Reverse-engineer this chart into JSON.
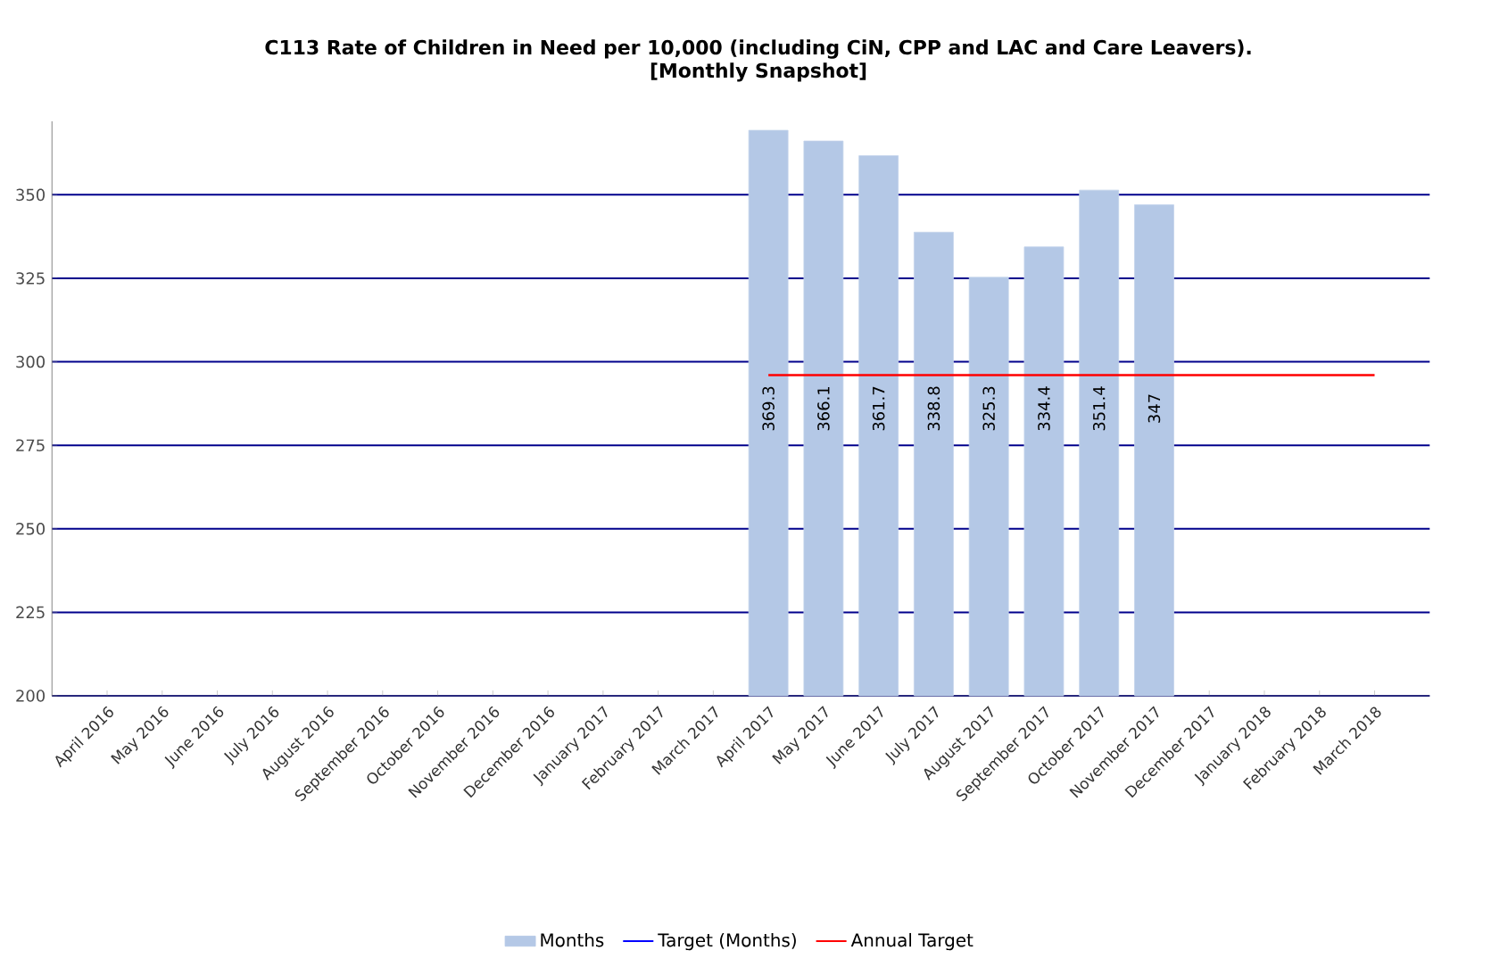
{
  "chart_data": {
    "type": "bar",
    "title": "C113 Rate of Children in Need per 10,000 (including CiN, CPP and LAC and Care Leavers).",
    "subtitle": "[Monthly Snapshot]",
    "categories": [
      "April 2016",
      "May 2016",
      "June 2016",
      "July 2016",
      "August 2016",
      "September 2016",
      "October 2016",
      "November 2016",
      "December 2016",
      "January 2017",
      "February 2017",
      "March 2017",
      "April 2017",
      "May 2017",
      "June 2017",
      "July 2017",
      "August 2017",
      "September 2017",
      "October 2017",
      "November 2017",
      "December 2017",
      "January 2018",
      "February 2018",
      "March 2018"
    ],
    "series": [
      {
        "name": "Months",
        "color": "#b4c8e6",
        "values": [
          null,
          null,
          null,
          null,
          null,
          null,
          null,
          null,
          null,
          null,
          null,
          null,
          369.3,
          366.1,
          361.7,
          338.8,
          325.3,
          334.4,
          351.4,
          347,
          null,
          null,
          null,
          null
        ],
        "value_labels": [
          null,
          null,
          null,
          null,
          null,
          null,
          null,
          null,
          null,
          null,
          null,
          null,
          "369.3",
          "366.1",
          "361.7",
          "338.8",
          "325.3",
          "334.4",
          "351.4",
          "347",
          null,
          null,
          null,
          null
        ]
      },
      {
        "name": "Target (Months)",
        "type": "line",
        "color": "#0000ff",
        "values": [
          null,
          null,
          null,
          null,
          null,
          null,
          null,
          null,
          null,
          null,
          null,
          null,
          null,
          null,
          null,
          null,
          null,
          null,
          null,
          null,
          null,
          null,
          null,
          null
        ]
      },
      {
        "name": "Annual Target",
        "type": "line",
        "color": "#ff0000",
        "values": [
          null,
          null,
          null,
          null,
          null,
          null,
          null,
          null,
          null,
          null,
          null,
          null,
          296,
          296,
          296,
          296,
          296,
          296,
          296,
          296,
          296,
          296,
          296,
          296
        ]
      }
    ],
    "ylim": [
      200,
      372
    ],
    "yticks": [
      200,
      225,
      250,
      275,
      300,
      325,
      350
    ],
    "grid": "y",
    "legend": "bottom"
  }
}
